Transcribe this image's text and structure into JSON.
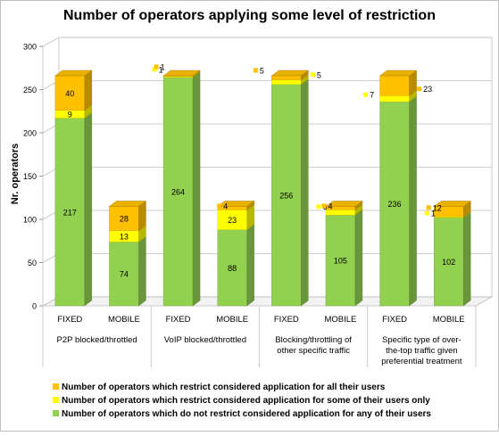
{
  "chart_data": {
    "type": "bar",
    "stacked": true,
    "title": "Number of operators applying some level of restriction",
    "ylabel": "Nr. operators",
    "ylim": [
      0,
      300
    ],
    "yticks": [
      0,
      50,
      100,
      150,
      200,
      250,
      300
    ],
    "grid": true,
    "legend_position": "bottom",
    "groups": [
      "P2P blocked/throttled",
      "VoIP blocked/throttled",
      "Blocking/throttling of other specific traffic",
      "Specific type of over-the-top traffic given preferential treatment"
    ],
    "group_label_lines": [
      [
        "P2P blocked/throttled"
      ],
      [
        "VoIP blocked/throttled"
      ],
      [
        "Blocking/throttling of",
        "other specific traffic"
      ],
      [
        "Specific type of over-",
        "the-top traffic given",
        "preferential treatment"
      ]
    ],
    "categories": [
      "FIXED",
      "MOBILE",
      "FIXED",
      "MOBILE",
      "FIXED",
      "MOBILE",
      "FIXED",
      "MOBILE"
    ],
    "series": [
      {
        "name": "Number of operators which do not restrict considered application for any of their users",
        "color": "#92D050",
        "values": [
          217,
          74,
          264,
          88,
          256,
          105,
          236,
          102
        ]
      },
      {
        "name": "Number of operators which restrict considered application for some of their users only",
        "color": "#FFFF00",
        "values": [
          9,
          13,
          1,
          23,
          5,
          6,
          7,
          1
        ]
      },
      {
        "name": "Number of operators which restrict considered application for all their users",
        "color": "#FFC000",
        "values": [
          40,
          28,
          1,
          4,
          5,
          4,
          23,
          12
        ]
      }
    ],
    "legend_order": [
      2,
      1,
      0
    ]
  }
}
